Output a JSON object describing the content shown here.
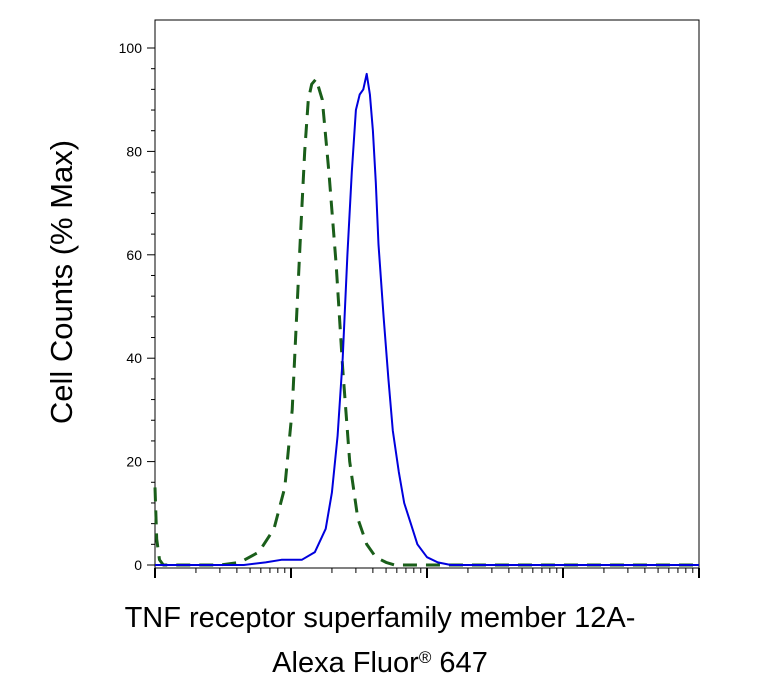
{
  "chart_data": {
    "type": "line",
    "title": "",
    "ylabel": "Cell Counts (% Max)",
    "xlabel_line1": "TNF receptor superfamily member 12A-",
    "xlabel_line2_prefix": "Alexa Fluor",
    "xlabel_line2_reg": "®",
    "xlabel_line2_suffix": " 647",
    "xscale": "log",
    "xlim": [
      1,
      10000
    ],
    "ylim": [
      0,
      100
    ],
    "yticks": [
      {
        "value": 0,
        "label": "0"
      },
      {
        "value": 20,
        "label": "20"
      },
      {
        "value": 40,
        "label": "40"
      },
      {
        "value": 60,
        "label": "60"
      },
      {
        "value": 80,
        "label": "80"
      },
      {
        "value": 100,
        "label": "100"
      }
    ],
    "grid": false,
    "legend": "none",
    "series": [
      {
        "color": "#1a5e1a",
        "style": "dashed",
        "x": [
          1,
          1.03,
          1.08,
          1.15,
          1.4,
          2.0,
          3.0,
          4.2,
          5.8,
          7.5,
          9.0,
          10.2,
          11.0,
          11.8,
          12.6,
          13.4,
          14.2,
          15.3,
          17.0,
          19.0,
          21.5,
          24.0,
          27.0,
          31.0,
          36.0,
          42.0,
          50.0,
          58.0,
          70.0,
          90.0,
          150,
          400,
          2000,
          10000
        ],
        "y": [
          15,
          5,
          1,
          0,
          0,
          0,
          0,
          0.5,
          2.5,
          7,
          15,
          30,
          48,
          65,
          80,
          90,
          93,
          94,
          90,
          76,
          58,
          38,
          20,
          9,
          4,
          1.5,
          0.5,
          0,
          0,
          0,
          0,
          0,
          0,
          0
        ]
      },
      {
        "color": "#0000dd",
        "style": "solid",
        "x": [
          1,
          3.0,
          4.5,
          6.5,
          8.5,
          12.0,
          15.0,
          18.0,
          20.0,
          22.0,
          24.0,
          26.0,
          28.0,
          30.0,
          32.0,
          34.0,
          36.0,
          38.0,
          40.0,
          42.0,
          44.0,
          48.0,
          52.0,
          56.0,
          62.0,
          68.0,
          76.0,
          85.0,
          100.0,
          120.0,
          150.0,
          200,
          400,
          2000,
          10000
        ],
        "y": [
          0,
          0,
          0,
          0.5,
          1,
          1,
          2.5,
          7,
          14,
          25,
          40,
          60,
          76,
          88,
          91,
          92,
          95,
          91,
          84,
          74,
          62,
          48,
          36,
          26,
          18,
          12,
          8,
          4,
          1.5,
          0.5,
          0,
          0,
          0,
          0,
          0
        ]
      }
    ]
  }
}
